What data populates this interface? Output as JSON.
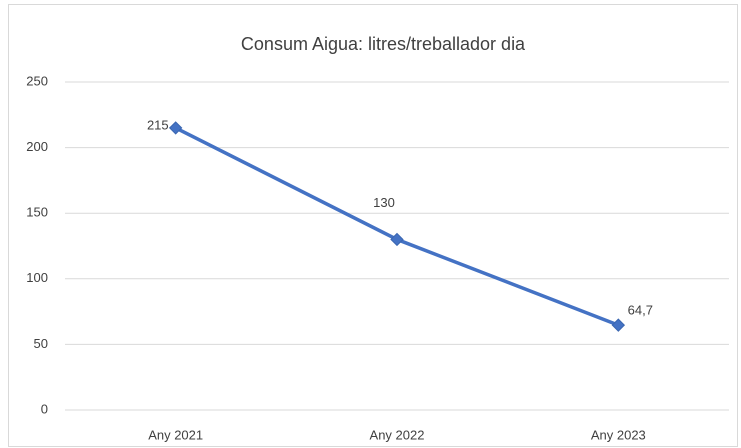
{
  "chart_data": {
    "type": "line",
    "title": "Consum Aigua: litres/treballador dia",
    "categories": [
      "Any 2021",
      "Any 2022",
      "Any 2023"
    ],
    "series": [
      {
        "name": "Consum",
        "color": "#4472c4",
        "values": [
          215,
          130,
          64.7
        ],
        "value_labels": [
          "215",
          "130",
          "64,7"
        ]
      }
    ],
    "ylim": [
      0,
      250
    ],
    "yticks": [
      0,
      50,
      100,
      150,
      200,
      250
    ],
    "grid": true
  }
}
